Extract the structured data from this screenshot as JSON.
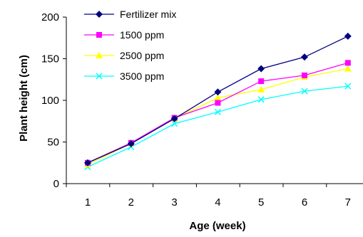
{
  "chart_data": {
    "type": "line",
    "x": [
      1,
      2,
      3,
      4,
      5,
      6,
      7
    ],
    "xlabel": "Age (week)",
    "ylabel": "Plant height (cm)",
    "ylim": [
      0,
      200
    ],
    "yticks": [
      0,
      50,
      100,
      150,
      200
    ],
    "grid": false,
    "legend_position": "top-left",
    "series": [
      {
        "name": "Fertilizer mix",
        "color": "#000080",
        "marker": "diamond",
        "values": [
          25,
          48,
          78,
          110,
          138,
          152,
          177
        ]
      },
      {
        "name": "1500 ppm",
        "color": "#ff00ff",
        "marker": "square",
        "values": [
          25,
          49,
          79,
          97,
          123,
          130,
          145
        ]
      },
      {
        "name": "2500 ppm",
        "color": "#ffff00",
        "marker": "triangle",
        "values": [
          23,
          48,
          78,
          103,
          113,
          128,
          138
        ]
      },
      {
        "name": "3500 ppm",
        "color": "#00ffff",
        "marker": "x",
        "values": [
          20,
          44,
          72,
          86,
          101,
          111,
          117
        ]
      }
    ]
  }
}
